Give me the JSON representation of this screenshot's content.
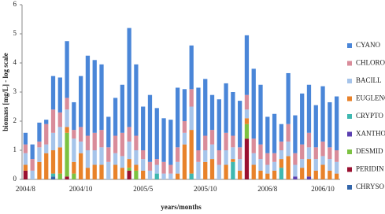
{
  "chart_data": {
    "type": "stacked_bar",
    "y_label": "biomass [mg/L] - log scale",
    "x_label": "years/months",
    "categories": [
      "2004/8",
      null,
      null,
      null,
      null,
      null,
      null,
      null,
      "2004/10",
      null,
      null,
      null,
      null,
      null,
      null,
      null,
      null,
      "2005/5",
      null,
      null,
      null,
      null,
      null,
      null,
      null,
      null,
      "2005/10",
      null,
      null,
      null,
      null,
      null,
      null,
      null,
      null,
      "2006/8",
      null,
      null,
      null,
      null,
      null,
      null,
      null,
      "2006/10",
      null,
      null
    ],
    "ylim": [
      0,
      6
    ],
    "yticks": [
      0,
      1,
      2,
      3,
      4,
      5,
      6
    ],
    "grid": false,
    "series": [
      {
        "name": "CYANO",
        "color": "#4a86d8",
        "values": [
          0.4,
          0.5,
          0.65,
          0.15,
          1.15,
          1.2,
          1.95,
          0.95,
          1.75,
          2.75,
          2.5,
          2.25,
          1.05,
          1.3,
          1.65,
          3.4,
          2.45,
          1.5,
          2.3,
          1.75,
          1.5,
          1.55,
          2.05,
          1.1,
          1.5,
          2.15,
          1.95,
          1.2,
          1.75,
          1.7,
          1.5,
          1.6,
          2.05,
          2.4,
          2.05,
          1.25,
          1.35,
          0.6,
          1.75,
          1.3,
          1.75,
          1.65,
          1.45,
          1.9,
          1.55,
          1.85
        ]
      },
      {
        "name": "CHLORO",
        "color": "#d98c9a",
        "values": [
          0.3,
          0.4,
          0.2,
          0.7,
          0.8,
          0.5,
          0.4,
          0.3,
          0.5,
          0.5,
          0.6,
          0.6,
          0.5,
          0.6,
          0.8,
          0.5,
          0.5,
          0.3,
          0.3,
          0.2,
          0.4,
          0.3,
          0.5,
          0.4,
          0.6,
          0.4,
          0.5,
          0.5,
          0.5,
          0.6,
          0.4,
          0.4,
          0.5,
          0.5,
          0.5,
          0.4,
          0.3,
          0.3,
          0.6,
          0.4,
          0.5,
          0.5,
          0.4,
          0.5,
          0.4,
          0.4
        ]
      },
      {
        "name": "BACILL",
        "color": "#a6c4ea",
        "values": [
          0.4,
          0.3,
          0.5,
          0.3,
          0.6,
          0.7,
          0.6,
          0.8,
          0.4,
          0.6,
          0.5,
          0.6,
          0.6,
          0.4,
          0.4,
          0.6,
          0.5,
          0.4,
          0.3,
          0.3,
          0.2,
          0.2,
          0.4,
          0.4,
          0.8,
          0.6,
          0.4,
          0.5,
          0.5,
          0.5,
          0.4,
          0.4,
          0.3,
          0.4,
          0.4,
          0.3,
          0.3,
          0.3,
          0.5,
          0.4,
          0.3,
          0.4,
          0.4,
          0.3,
          0.4,
          0.4
        ]
      },
      {
        "name": "EUGLENO",
        "color": "#e8822a",
        "values": [
          0.2,
          0,
          0.6,
          0.9,
          0.8,
          0.9,
          0.2,
          0.4,
          0.9,
          0.4,
          0.5,
          0.5,
          0,
          0.5,
          0.4,
          0.3,
          0.2,
          0.3,
          0,
          0,
          0,
          0,
          0.2,
          1.2,
          1.5,
          0,
          0.6,
          0.7,
          0,
          0.5,
          0.1,
          0.3,
          0.2,
          0.5,
          0.3,
          0.2,
          0.3,
          0.3,
          0.8,
          0,
          0.4,
          0.6,
          0.3,
          0.5,
          0.3,
          0.2
        ]
      },
      {
        "name": "CRYPTO",
        "color": "#3fb8b0",
        "values": [
          0,
          0,
          0,
          0,
          0.1,
          0,
          0,
          0,
          0,
          0,
          0,
          0,
          0,
          0,
          0,
          0,
          0,
          0,
          0,
          0.2,
          0,
          0,
          0,
          0,
          0.2,
          0,
          0,
          0,
          0,
          0,
          0.6,
          0,
          0,
          0,
          0,
          0,
          0,
          0.4,
          0,
          0,
          0,
          0,
          0,
          0,
          0,
          0
        ]
      },
      {
        "name": "XANTHO",
        "color": "#5b3fb0",
        "values": [
          0,
          0,
          0,
          0,
          0,
          0,
          0,
          0,
          0,
          0,
          0,
          0,
          0,
          0,
          0,
          0,
          0,
          0,
          0,
          0,
          0,
          0,
          0,
          0,
          0,
          0,
          0,
          0,
          0,
          0,
          0,
          0,
          0,
          0,
          0,
          0,
          0,
          0,
          0,
          0.1,
          0,
          0.1,
          0,
          0,
          0,
          0
        ]
      },
      {
        "name": "DESMID",
        "color": "#7cc242",
        "values": [
          0,
          0,
          0,
          0,
          0,
          0.2,
          1.5,
          0.2,
          0,
          0,
          0,
          0,
          0,
          0,
          0,
          0.1,
          0.3,
          0,
          0,
          0,
          0,
          0,
          0,
          0,
          0,
          0,
          0,
          0,
          0,
          0,
          0,
          0,
          0.5,
          0,
          0,
          0,
          0,
          0,
          0,
          0,
          0,
          0,
          0,
          0,
          0,
          0
        ]
      },
      {
        "name": "PERIDIN",
        "color": "#9a1030",
        "values": [
          0.3,
          0,
          0,
          0,
          0,
          0,
          0.1,
          0,
          0,
          0,
          0,
          0,
          0,
          0,
          0,
          0.3,
          0,
          0,
          0,
          0,
          0,
          0,
          0,
          0,
          0,
          0,
          0,
          0,
          0,
          0,
          0,
          0,
          1.4,
          0,
          0,
          0,
          0,
          0,
          0,
          0,
          0,
          0,
          0,
          0,
          0,
          0
        ]
      },
      {
        "name": "CHRYSO",
        "color": "#3366aa",
        "values": [
          0,
          0,
          0,
          0,
          0.1,
          0,
          0,
          0,
          0,
          0,
          0,
          0,
          0,
          0,
          0,
          0,
          0,
          0,
          0,
          0,
          0,
          0,
          0,
          0,
          0,
          0,
          0,
          0,
          0,
          0,
          0,
          0,
          0,
          0,
          0,
          0,
          0,
          0,
          0,
          0,
          0,
          0,
          0,
          0,
          0,
          0
        ]
      }
    ]
  }
}
